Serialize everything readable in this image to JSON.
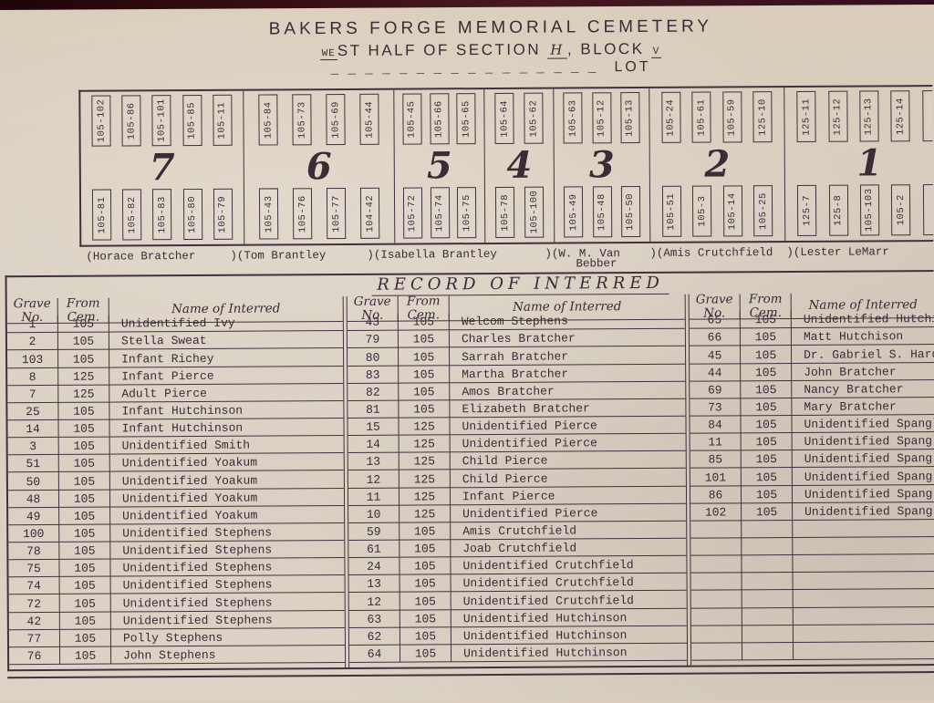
{
  "colors": {
    "ink": "#3a2b36",
    "line": "#44303d",
    "bar": "#471820",
    "paper": "#d8cec1"
  },
  "header": {
    "title": "BAKERS FORGE MEMORIAL CEMETERY",
    "we": "WE",
    "subtitle": "ST HALF OF SECTION",
    "section": "H",
    "comma_block": ", BLOCK",
    "block": "V",
    "dashes": "_ _ _ _ _ _ _ _ _ _ _ _ _ _ _ _",
    "lot_label": "LOT"
  },
  "diagram": {
    "lots": [
      {
        "number": "7",
        "top": [
          "105-102",
          "105-86",
          "105-101",
          "105-85",
          "105-11"
        ],
        "bottom": [
          "105-81",
          "105-82",
          "105-83",
          "105-80",
          "105-79"
        ]
      },
      {
        "number": "6",
        "top": [
          "105-84",
          "105-73",
          "105-69",
          "105-44"
        ],
        "bottom": [
          "105-43",
          "105-76",
          "105-77",
          "104-42"
        ]
      },
      {
        "number": "5",
        "top": [
          "105-45",
          "105-66",
          "105-65"
        ],
        "bottom": [
          "105-72",
          "105-74",
          "105-75"
        ]
      },
      {
        "number": "4",
        "top": [
          "105-64",
          "105-62"
        ],
        "bottom": [
          "105-78",
          "105-100"
        ]
      },
      {
        "number": "3",
        "top": [
          "105-63",
          "105-12",
          "105-13"
        ],
        "bottom": [
          "105-49",
          "105-48",
          "105-50"
        ]
      },
      {
        "number": "2",
        "top": [
          "105-24",
          "105-61",
          "105-59",
          "125-10"
        ],
        "bottom": [
          "105-51",
          "105-3",
          "105-14",
          "105-25"
        ]
      },
      {
        "number": "1",
        "top": [
          "125-11",
          "125-12",
          "125-13",
          "125-14",
          ""
        ],
        "bottom": [
          "125-7",
          "125-8",
          "105-103",
          "105-2",
          ""
        ]
      }
    ],
    "owners": [
      {
        "text": "(Horace Bratcher"
      },
      {
        "text": ")(Tom Brantley"
      },
      {
        "text": ")(Isabella Brantley"
      },
      {
        "text": ")(W. M. Van",
        "text2": "Bebber"
      },
      {
        "text": ")(Amis Crutchfield"
      },
      {
        "text": ")(Lester LeMarr"
      }
    ]
  },
  "record": {
    "title": "RECORD OF INTERRED",
    "col_grave": "Grave\nNo.",
    "col_from": "From\nCem.",
    "col_name": "Name of Interred",
    "groups": [
      {
        "rows": [
          [
            "1",
            "105",
            "Unidentified Ivy"
          ],
          [
            "2",
            "105",
            "Stella Sweat"
          ],
          [
            "103",
            "105",
            "Infant Richey"
          ],
          [
            "8",
            "125",
            "Infant Pierce"
          ],
          [
            "7",
            "125",
            "Adult Pierce"
          ],
          [
            "25",
            "105",
            "Infant Hutchinson"
          ],
          [
            "14",
            "105",
            "Infant Hutchinson"
          ],
          [
            "3",
            "105",
            "Unidentified Smith"
          ],
          [
            "51",
            "105",
            "Unidentified Yoakum"
          ],
          [
            "50",
            "105",
            "Unidentified Yoakum"
          ],
          [
            "48",
            "105",
            "Unidentified Yoakum"
          ],
          [
            "49",
            "105",
            "Unidentified Yoakum"
          ],
          [
            "100",
            "105",
            "Unidentified Stephens"
          ],
          [
            "78",
            "105",
            "Unidentified Stephens"
          ],
          [
            "75",
            "105",
            "Unidentified Stephens"
          ],
          [
            "74",
            "105",
            "Unidentified Stephens"
          ],
          [
            "72",
            "105",
            "Unidentified Stephens"
          ],
          [
            "42",
            "105",
            "Unidentified Stephens"
          ],
          [
            "77",
            "105",
            "Polly Stephens"
          ],
          [
            "76",
            "105",
            "John Stephens"
          ]
        ]
      },
      {
        "rows": [
          [
            "43",
            "105",
            "Welcom Stephens"
          ],
          [
            "79",
            "105",
            "Charles Bratcher"
          ],
          [
            "80",
            "105",
            "Sarrah Bratcher"
          ],
          [
            "83",
            "105",
            "Martha Bratcher"
          ],
          [
            "82",
            "105",
            "Amos Bratcher"
          ],
          [
            "81",
            "105",
            "Elizabeth Bratcher"
          ],
          [
            "15",
            "125",
            "Unidentified Pierce"
          ],
          [
            "14",
            "125",
            "Unidentified Pierce"
          ],
          [
            "13",
            "125",
            "Child Pierce"
          ],
          [
            "12",
            "125",
            "Child Pierce"
          ],
          [
            "11",
            "125",
            "Infant Pierce"
          ],
          [
            "10",
            "125",
            "Unidentified Pierce"
          ],
          [
            "59",
            "105",
            "Amis Crutchfield"
          ],
          [
            "61",
            "105",
            "Joab Crutchfield"
          ],
          [
            "24",
            "105",
            "Unidentified Crutchfield"
          ],
          [
            "13",
            "105",
            "Unidentified Crutchfield"
          ],
          [
            "12",
            "105",
            "Unidentified Crutchfield"
          ],
          [
            "63",
            "105",
            "Unidentified Hutchinson"
          ],
          [
            "62",
            "105",
            "Unidentified Hutchinson"
          ],
          [
            "64",
            "105",
            "Unidentified Hutchinson"
          ]
        ]
      },
      {
        "rows": [
          [
            "65",
            "105",
            "Unidentified Hutchis"
          ],
          [
            "66",
            "105",
            "Matt Hutchison"
          ],
          [
            "45",
            "105",
            "Dr. Gabriel S. Hardi"
          ],
          [
            "44",
            "105",
            "John Bratcher"
          ],
          [
            "69",
            "105",
            "Nancy Bratcher"
          ],
          [
            "73",
            "105",
            "Mary Bratcher"
          ],
          [
            "84",
            "105",
            "Unidentified Spangle"
          ],
          [
            "11",
            "105",
            "Unidentified Spangle"
          ],
          [
            "85",
            "105",
            "Unidentified Spangle"
          ],
          [
            "101",
            "105",
            "Unidentified Spangle"
          ],
          [
            "86",
            "105",
            "Unidentified Spangle"
          ],
          [
            "102",
            "105",
            "Unidentified Spangle"
          ],
          [
            "",
            "",
            ""
          ],
          [
            "",
            "",
            ""
          ],
          [
            "",
            "",
            ""
          ],
          [
            "",
            "",
            ""
          ],
          [
            "",
            "",
            ""
          ],
          [
            "",
            "",
            ""
          ],
          [
            "",
            "",
            ""
          ],
          [
            "",
            "",
            ""
          ]
        ]
      }
    ]
  }
}
